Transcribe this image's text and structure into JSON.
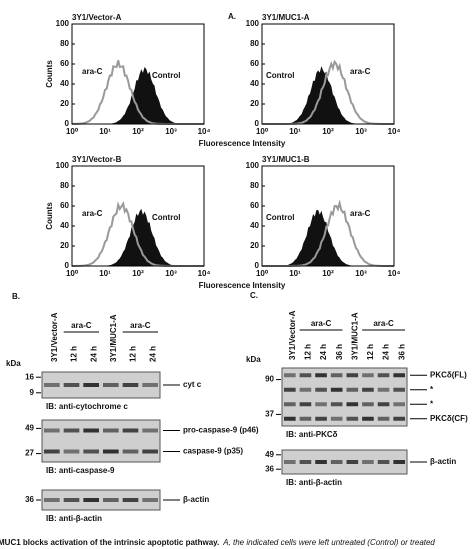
{
  "panel_a": {
    "label": "A.",
    "ylabel": "Counts",
    "xlabel": "Fluorescence Intensity",
    "yticks": [
      "0",
      "20",
      "40",
      "60",
      "80",
      "100"
    ],
    "xticks": [
      "10⁰",
      "10¹",
      "10²",
      "10³",
      "10⁴"
    ],
    "plots": [
      {
        "title": "3Y1/Vector-A",
        "treated": "ara-C",
        "control": "Control"
      },
      {
        "title": "3Y1/MUC1-A",
        "treated": "ara-C",
        "control": "Control"
      },
      {
        "title": "3Y1/Vector-B",
        "treated": "ara-C",
        "control": "Control"
      },
      {
        "title": "3Y1/MUC1-B",
        "treated": "ara-C",
        "control": "Control"
      }
    ]
  },
  "panel_b": {
    "label": "B.",
    "kda": "kDa",
    "lanes": [
      "3Y1/Vector-A",
      "12 h",
      "24 h",
      "3Y1/MUC1-A",
      "12 h",
      "24 h"
    ],
    "group": [
      "ara-C",
      "ara-C"
    ],
    "blots": [
      {
        "markers": [
          "16",
          "9"
        ],
        "bands": [
          "cyt c"
        ],
        "caption": "IB: anti-cytochrome c"
      },
      {
        "markers": [
          "49",
          "27"
        ],
        "bands": [
          "pro-caspase-9 (p46)",
          "caspase-9 (p35)"
        ],
        "caption": "IB: anti-caspase-9"
      },
      {
        "markers": [
          "36"
        ],
        "bands": [
          "β-actin"
        ],
        "caption": "IB: anti-β-actin"
      }
    ]
  },
  "panel_c": {
    "label": "C.",
    "kda": "kDa",
    "lanes": [
      "3Y1/Vector-A",
      "12 h",
      "24 h",
      "36 h",
      "3Y1/MUC1-A",
      "12 h",
      "24 h",
      "36 h"
    ],
    "group": [
      "ara-C",
      "ara-C"
    ],
    "blots": [
      {
        "markers": [
          "90",
          "37"
        ],
        "bands": [
          "PKCδ(FL)",
          "*",
          "*",
          "PKCδ(CF)"
        ],
        "caption": "IB: anti-PKCδ"
      },
      {
        "markers": [
          "49",
          "36"
        ],
        "bands": [
          "β-actin"
        ],
        "caption": "IB: anti-β-actin"
      }
    ]
  },
  "caption": {
    "lead": "MUC1 blocks activation of the intrinsic apoptotic pathway.",
    "text": "A, the indicated cells were left untreated (Control) or treated"
  }
}
